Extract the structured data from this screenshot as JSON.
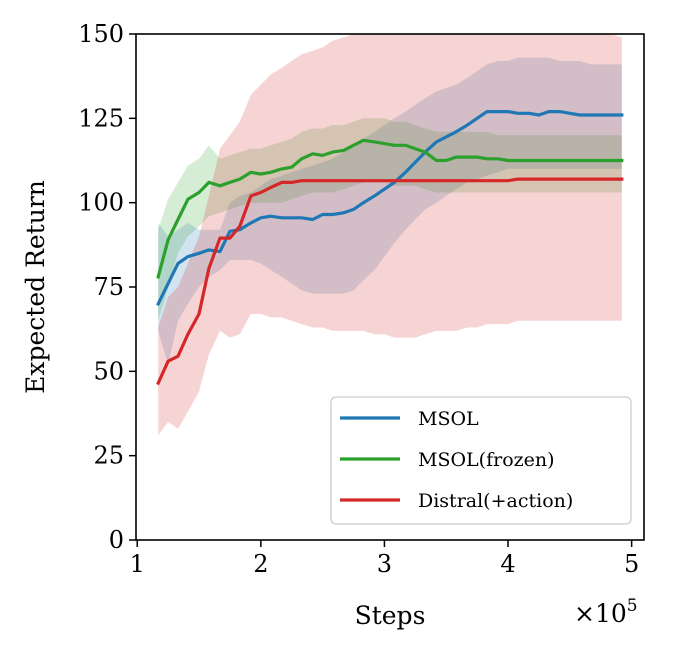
{
  "chart_data": {
    "type": "line",
    "title": "",
    "xlabel": "Steps",
    "ylabel": "Expected Return",
    "x_scale_label": "×10",
    "x_scale_exponent": "5",
    "xlim": [
      0.99,
      5.1
    ],
    "ylim": [
      0,
      150
    ],
    "xticks": [
      1,
      2,
      3,
      4,
      5
    ],
    "xtick_labels": [
      "1",
      "2",
      "3",
      "4",
      "5"
    ],
    "yticks": [
      0,
      25,
      50,
      75,
      100,
      125,
      150
    ],
    "ytick_labels": [
      "0",
      "25",
      "50",
      "75",
      "100",
      "125",
      "150"
    ],
    "grid": false,
    "legend_position": "bottom-right",
    "series": [
      {
        "name": "MSOL",
        "color": "#1f77b4",
        "band_color": "#1f77b4",
        "x": [
          1.17,
          1.25,
          1.33,
          1.41,
          1.5,
          1.58,
          1.67,
          1.75,
          1.83,
          1.92,
          2.0,
          2.08,
          2.17,
          2.25,
          2.33,
          2.42,
          2.5,
          2.58,
          2.67,
          2.75,
          2.83,
          2.92,
          3.0,
          3.08,
          3.17,
          3.25,
          3.33,
          3.42,
          3.5,
          3.58,
          3.67,
          3.75,
          3.83,
          3.92,
          4.0,
          4.08,
          4.17,
          4.25,
          4.33,
          4.42,
          4.5,
          4.58,
          4.67,
          4.75,
          4.83,
          4.92
        ],
        "y": [
          70,
          76,
          82,
          84,
          85,
          86,
          85.5,
          91.5,
          92,
          94,
          95.5,
          96,
          95.5,
          95.5,
          95.5,
          95,
          96.5,
          96.5,
          97,
          98,
          100,
          102,
          104,
          106,
          109,
          112,
          115,
          118,
          119.5,
          121,
          123,
          125,
          127,
          127,
          127,
          126.5,
          126.5,
          126,
          127,
          127,
          126.5,
          126,
          126,
          126,
          126,
          126
        ],
        "lower": [
          62,
          52,
          65,
          70,
          75,
          78,
          80,
          83,
          83,
          83,
          82,
          80,
          78,
          76,
          74,
          73,
          73,
          73,
          73,
          74,
          77,
          80,
          84,
          88,
          92,
          95,
          98,
          100,
          102,
          104,
          106,
          107,
          108,
          109,
          110,
          110,
          110,
          110,
          110,
          110,
          110,
          110,
          110,
          110,
          110,
          110
        ],
        "upper": [
          94,
          90,
          92,
          94,
          92,
          92,
          92,
          100,
          102,
          103,
          105,
          107,
          108,
          109,
          110,
          111,
          112,
          113,
          115,
          117,
          119,
          121,
          123,
          125,
          127,
          129,
          131,
          133,
          134,
          135,
          137,
          139,
          141,
          142,
          142,
          143,
          143,
          143,
          143,
          142,
          142,
          142,
          141,
          141,
          141,
          141
        ]
      },
      {
        "name": "MSOL(frozen)",
        "color": "#2ca02c",
        "band_color": "#2ca02c",
        "x": [
          1.17,
          1.25,
          1.33,
          1.41,
          1.5,
          1.58,
          1.67,
          1.75,
          1.83,
          1.92,
          2.0,
          2.08,
          2.17,
          2.25,
          2.33,
          2.42,
          2.5,
          2.58,
          2.67,
          2.75,
          2.83,
          2.92,
          3.0,
          3.08,
          3.17,
          3.25,
          3.33,
          3.42,
          3.5,
          3.58,
          3.67,
          3.75,
          3.83,
          3.92,
          4.0,
          4.08,
          4.17,
          4.25,
          4.33,
          4.42,
          4.5,
          4.58,
          4.67,
          4.75,
          4.83,
          4.92
        ],
        "y": [
          78,
          89,
          95,
          101,
          103,
          106,
          105,
          106,
          107,
          109,
          108.5,
          109,
          110,
          110.5,
          113,
          114.5,
          114,
          115,
          115.5,
          117,
          118.5,
          118,
          117.5,
          117,
          117,
          116,
          115,
          112.5,
          112.5,
          113.5,
          113.5,
          113.5,
          113,
          113,
          112.5,
          112.5,
          112.5,
          112.5,
          112.5,
          112.5,
          112.5,
          112.5,
          112.5,
          112.5,
          112.5,
          112.5
        ],
        "lower": [
          65,
          75,
          85,
          90,
          93,
          96,
          97,
          98,
          99,
          100,
          100,
          100,
          100,
          101,
          102,
          103,
          103,
          103,
          104,
          105,
          106,
          106,
          106,
          105,
          105,
          105,
          104,
          103,
          103,
          103,
          103,
          103,
          103,
          103,
          103,
          103,
          103,
          103,
          103,
          103,
          103,
          103,
          103,
          103,
          103,
          103
        ],
        "upper": [
          92,
          101,
          106,
          111,
          113,
          117,
          113,
          114,
          115,
          116,
          116,
          117,
          118,
          119,
          121,
          122,
          122,
          123,
          123,
          124,
          125,
          125,
          125,
          124,
          124,
          123,
          122,
          121,
          121,
          121,
          121,
          121,
          121,
          120,
          120,
          120,
          120,
          120,
          120,
          120,
          120,
          120,
          120,
          120,
          120,
          120
        ]
      },
      {
        "name": "Distral(+action)",
        "color": "#d62728",
        "band_color": "#d62728",
        "x": [
          1.17,
          1.25,
          1.33,
          1.41,
          1.5,
          1.58,
          1.67,
          1.75,
          1.83,
          1.92,
          2.0,
          2.08,
          2.17,
          2.25,
          2.33,
          2.42,
          2.5,
          2.58,
          2.67,
          2.75,
          2.83,
          2.92,
          3.0,
          3.08,
          3.17,
          3.25,
          3.33,
          3.42,
          3.5,
          3.58,
          3.67,
          3.75,
          3.83,
          3.92,
          4.0,
          4.08,
          4.17,
          4.25,
          4.33,
          4.42,
          4.5,
          4.58,
          4.67,
          4.75,
          4.83,
          4.92
        ],
        "y": [
          46.5,
          53,
          54.5,
          61,
          67,
          80.5,
          89.5,
          89.5,
          93,
          102,
          103,
          104.5,
          106,
          106,
          106.5,
          106.5,
          106.5,
          106.5,
          106.5,
          106.5,
          106.5,
          106.5,
          106.5,
          106.5,
          106.5,
          106.5,
          106.5,
          106.5,
          106.5,
          106.5,
          106.5,
          106.5,
          106.5,
          106.5,
          106.5,
          107,
          107,
          107,
          107,
          107,
          107,
          107,
          107,
          107,
          107,
          107
        ],
        "lower": [
          31,
          35,
          33,
          38,
          44,
          55,
          62,
          60,
          61,
          67,
          67,
          66,
          66,
          65,
          64,
          63,
          63,
          62,
          62,
          62,
          62,
          61,
          61,
          60,
          60,
          60,
          61,
          62,
          62,
          62,
          63,
          63,
          64,
          64,
          64,
          65,
          65,
          65,
          65,
          65,
          65,
          65,
          65,
          65,
          65,
          65
        ],
        "upper": [
          63,
          72,
          75,
          82,
          90,
          102,
          116,
          120,
          124,
          132,
          135,
          138,
          140,
          142,
          144,
          145,
          146,
          148,
          149,
          150,
          150,
          150,
          150,
          150,
          150,
          150,
          150,
          150,
          150,
          150,
          150,
          150,
          150,
          150,
          150,
          150,
          150,
          150,
          150,
          150,
          150,
          150,
          150,
          150,
          150,
          149
        ]
      }
    ]
  }
}
